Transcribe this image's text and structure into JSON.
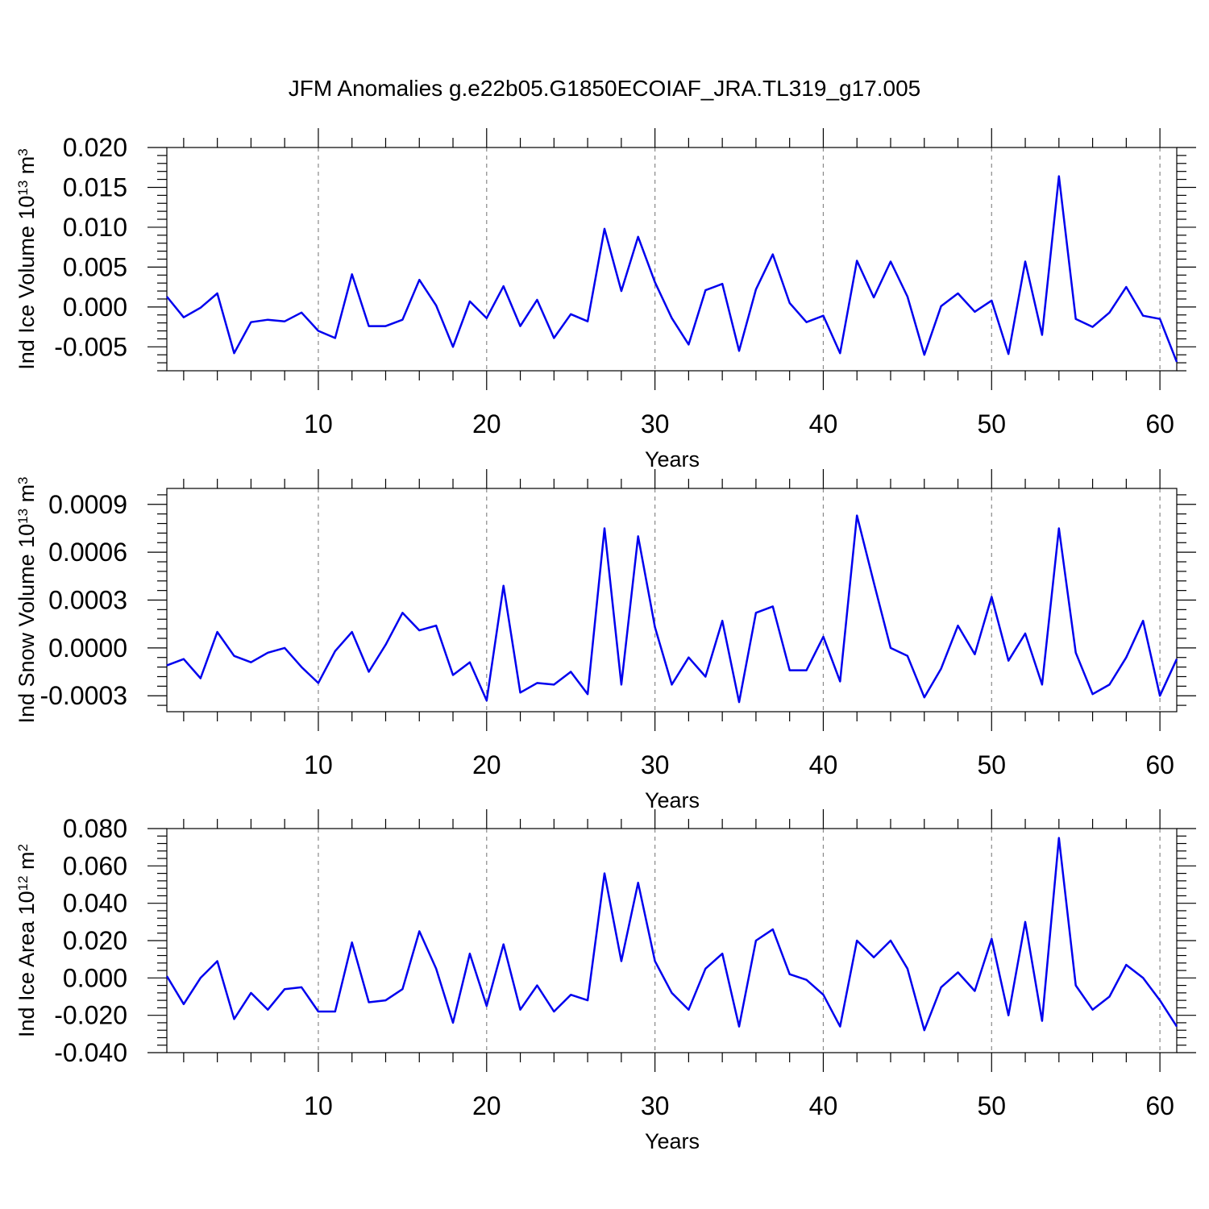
{
  "title": "JFM Anomalies g.e22b05.G1850ECOIAF_JRA.TL319_g17.005",
  "colors": {
    "line": "#0000ee",
    "grid": "#888888",
    "axis": "#000000"
  },
  "chart_data": [
    {
      "type": "line",
      "xlabel": "Years",
      "ylabel": {
        "prefix": "Ind Ice Volume 10",
        "exp": "13",
        "unit": " m",
        "unit_exp": "3"
      },
      "xlim": [
        1,
        61
      ],
      "ylim": [
        -0.008,
        0.02
      ],
      "xticks": [
        10,
        20,
        30,
        40,
        50,
        60
      ],
      "xtick_labels": [
        "10",
        "20",
        "30",
        "40",
        "50",
        "60"
      ],
      "yticks": [
        -0.005,
        0.0,
        0.005,
        0.01,
        0.015,
        0.02
      ],
      "ytick_labels": [
        "-0.005",
        "0.000",
        "0.005",
        "0.010",
        "0.015",
        "0.020"
      ],
      "grid": "vertical dashed at major x ticks",
      "x": [
        1,
        2,
        3,
        4,
        5,
        6,
        7,
        8,
        9,
        10,
        11,
        12,
        13,
        14,
        15,
        16,
        17,
        18,
        19,
        20,
        21,
        22,
        23,
        24,
        25,
        26,
        27,
        28,
        29,
        30,
        31,
        32,
        33,
        34,
        35,
        36,
        37,
        38,
        39,
        40,
        41,
        42,
        43,
        44,
        45,
        46,
        47,
        48,
        49,
        50,
        51,
        52,
        53,
        54,
        55,
        56,
        57,
        58,
        59,
        60,
        61
      ],
      "values": [
        0.0013,
        -0.0013,
        -0.0001,
        0.0017,
        -0.0058,
        -0.0019,
        -0.0016,
        -0.0018,
        -0.0007,
        -0.003,
        -0.0039,
        0.0041,
        -0.0024,
        -0.0024,
        -0.0016,
        0.0034,
        0.0002,
        -0.005,
        0.0007,
        -0.0014,
        0.0026,
        -0.0024,
        0.0009,
        -0.0039,
        -0.0009,
        -0.0018,
        0.0098,
        0.002,
        0.0088,
        0.0031,
        -0.0014,
        -0.0047,
        0.0021,
        0.0029,
        -0.0055,
        0.0022,
        0.0066,
        0.0005,
        -0.0019,
        -0.0011,
        -0.0058,
        0.0058,
        0.0012,
        0.0057,
        0.0013,
        -0.006,
        0.0001,
        0.0017,
        -0.0006,
        0.0008,
        -0.0059,
        0.0057,
        -0.0035,
        0.0164,
        -0.0015,
        -0.0025,
        -0.0007,
        0.0025,
        -0.0011,
        -0.0015,
        -0.0069
      ]
    },
    {
      "type": "line",
      "xlabel": "Years",
      "ylabel": {
        "prefix": "Ind Snow Volume 10",
        "exp": "13",
        "unit": " m",
        "unit_exp": "3"
      },
      "xlim": [
        1,
        61
      ],
      "ylim": [
        -0.0004,
        0.001
      ],
      "xticks": [
        10,
        20,
        30,
        40,
        50,
        60
      ],
      "xtick_labels": [
        "10",
        "20",
        "30",
        "40",
        "50",
        "60"
      ],
      "yticks": [
        -0.0003,
        0.0,
        0.0003,
        0.0006,
        0.0009
      ],
      "ytick_labels": [
        "-0.0003",
        "0.0000",
        "0.0003",
        "0.0006",
        "0.0009"
      ],
      "grid": "vertical dashed at major x ticks",
      "x": [
        1,
        2,
        3,
        4,
        5,
        6,
        7,
        8,
        9,
        10,
        11,
        12,
        13,
        14,
        15,
        16,
        17,
        18,
        19,
        20,
        21,
        22,
        23,
        24,
        25,
        26,
        27,
        28,
        29,
        30,
        31,
        32,
        33,
        34,
        35,
        36,
        37,
        38,
        39,
        40,
        41,
        42,
        43,
        44,
        45,
        46,
        47,
        48,
        49,
        50,
        51,
        52,
        53,
        54,
        55,
        56,
        57,
        58,
        59,
        60,
        61
      ],
      "values": [
        -0.00011,
        -7e-05,
        -0.00019,
        0.0001,
        -5e-05,
        -9e-05,
        -3e-05,
        0.0,
        -0.00012,
        -0.00022,
        -2e-05,
        0.0001,
        -0.00015,
        2e-05,
        0.00022,
        0.00011,
        0.00014,
        -0.00017,
        -9e-05,
        -0.00033,
        0.00039,
        -0.00028,
        -0.00022,
        -0.00023,
        -0.00015,
        -0.00029,
        0.00075,
        -0.00023,
        0.0007,
        0.00013,
        -0.00023,
        -6e-05,
        -0.00018,
        0.00017,
        -0.00034,
        0.00022,
        0.00026,
        -0.00014,
        -0.00014,
        7e-05,
        -0.00021,
        0.00083,
        0.00041,
        0.0,
        -5e-05,
        -0.00031,
        -0.00013,
        0.00014,
        -4e-05,
        0.00032,
        -8e-05,
        9e-05,
        -0.00023,
        0.00075,
        -3e-05,
        -0.00029,
        -0.00023,
        -6e-05,
        0.00017,
        -0.0003,
        -7e-05
      ]
    },
    {
      "type": "line",
      "xlabel": "Years",
      "ylabel": {
        "prefix": "Ind Ice Area 10",
        "exp": "12",
        "unit": " m",
        "unit_exp": "2"
      },
      "xlim": [
        1,
        61
      ],
      "ylim": [
        -0.04,
        0.08
      ],
      "xticks": [
        10,
        20,
        30,
        40,
        50,
        60
      ],
      "xtick_labels": [
        "10",
        "20",
        "30",
        "40",
        "50",
        "60"
      ],
      "yticks": [
        -0.04,
        -0.02,
        0.0,
        0.02,
        0.04,
        0.06,
        0.08
      ],
      "ytick_labels": [
        "-0.040",
        "-0.020",
        "0.000",
        "0.020",
        "0.040",
        "0.060",
        "0.080"
      ],
      "grid": "vertical dashed at major x ticks",
      "x": [
        1,
        2,
        3,
        4,
        5,
        6,
        7,
        8,
        9,
        10,
        11,
        12,
        13,
        14,
        15,
        16,
        17,
        18,
        19,
        20,
        21,
        22,
        23,
        24,
        25,
        26,
        27,
        28,
        29,
        30,
        31,
        32,
        33,
        34,
        35,
        36,
        37,
        38,
        39,
        40,
        41,
        42,
        43,
        44,
        45,
        46,
        47,
        48,
        49,
        50,
        51,
        52,
        53,
        54,
        55,
        56,
        57,
        58,
        59,
        60,
        61
      ],
      "values": [
        0.001,
        -0.014,
        0.0,
        0.009,
        -0.022,
        -0.008,
        -0.017,
        -0.006,
        -0.005,
        -0.018,
        -0.018,
        0.019,
        -0.013,
        -0.012,
        -0.006,
        0.025,
        0.005,
        -0.024,
        0.013,
        -0.015,
        0.018,
        -0.017,
        -0.004,
        -0.018,
        -0.009,
        -0.012,
        0.056,
        0.009,
        0.051,
        0.009,
        -0.008,
        -0.017,
        0.005,
        0.013,
        -0.026,
        0.02,
        0.026,
        0.002,
        -0.001,
        -0.009,
        -0.026,
        0.02,
        0.011,
        0.02,
        0.005,
        -0.028,
        -0.005,
        0.003,
        -0.007,
        0.021,
        -0.02,
        0.03,
        -0.023,
        0.075,
        -0.004,
        -0.017,
        -0.01,
        0.007,
        0.0,
        -0.012,
        -0.026
      ]
    }
  ]
}
